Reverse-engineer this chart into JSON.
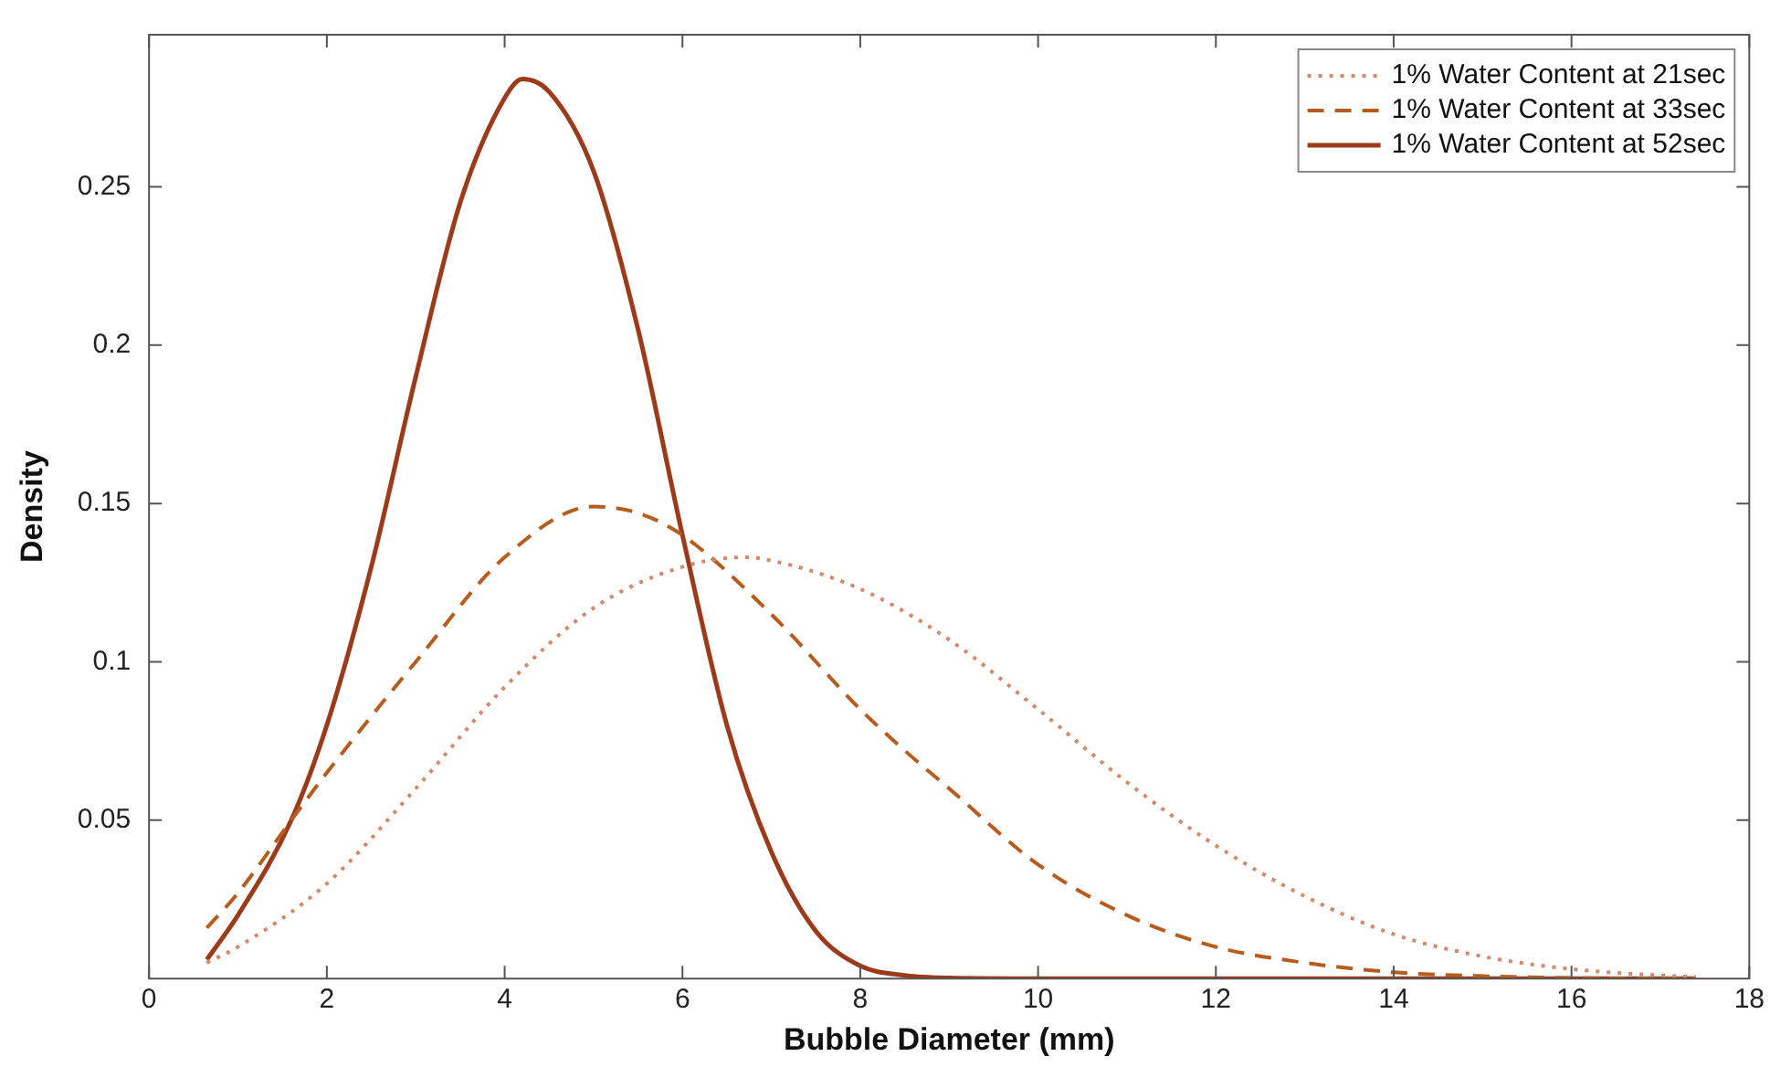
{
  "chart_data": {
    "type": "line",
    "xlabel": "Bubble Diameter (mm)",
    "ylabel": "Density",
    "xlim": [
      0,
      18
    ],
    "xticks": [
      0,
      2,
      4,
      6,
      8,
      10,
      12,
      14,
      16,
      18
    ],
    "ylim": [
      0,
      0.298
    ],
    "yticks": [
      0.05,
      0.1,
      0.15,
      0.2,
      0.25
    ],
    "grid": false,
    "legend": "top right",
    "marker": "none",
    "series": [
      {
        "name": "1% Water Content at 21sec",
        "color": "#d4896a",
        "line_style": "dotted",
        "x": [
          0.65,
          1,
          2,
          3,
          4,
          5,
          6,
          6.7,
          7,
          8,
          9,
          10,
          11,
          12,
          13,
          14,
          15,
          16,
          17,
          17.4
        ],
        "values": [
          0.005,
          0.01,
          0.03,
          0.06,
          0.092,
          0.117,
          0.13,
          0.133,
          0.132,
          0.123,
          0.107,
          0.085,
          0.062,
          0.042,
          0.026,
          0.014,
          0.007,
          0.003,
          0.001,
          0.0005
        ]
      },
      {
        "name": "1% Water Content at 33sec",
        "color": "#b85c1e",
        "line_style": "dashed",
        "x": [
          0.65,
          1,
          1.6,
          2,
          3,
          4,
          5,
          5.5,
          6,
          7,
          8,
          8.5,
          9,
          10,
          11,
          12,
          13,
          14,
          15,
          16,
          17.4
        ],
        "values": [
          0.016,
          0.027,
          0.05,
          0.065,
          0.1,
          0.133,
          0.149,
          0.147,
          0.14,
          0.115,
          0.085,
          0.072,
          0.06,
          0.036,
          0.02,
          0.01,
          0.005,
          0.002,
          0.0008,
          0.0002,
          0
        ]
      },
      {
        "name": "1% Water Content at 52sec",
        "color": "#9c3a1a",
        "line_style": "solid",
        "x": [
          0.65,
          1,
          1.6,
          2,
          2.5,
          3,
          3.5,
          4,
          4.2,
          4.5,
          5,
          5.5,
          6,
          6.5,
          7,
          7.5,
          8,
          8.5,
          9,
          10,
          17.4
        ],
        "values": [
          0.006,
          0.02,
          0.05,
          0.08,
          0.13,
          0.19,
          0.245,
          0.278,
          0.284,
          0.28,
          0.255,
          0.205,
          0.14,
          0.08,
          0.04,
          0.015,
          0.004,
          0.001,
          0.0002,
          0,
          0
        ]
      }
    ]
  }
}
